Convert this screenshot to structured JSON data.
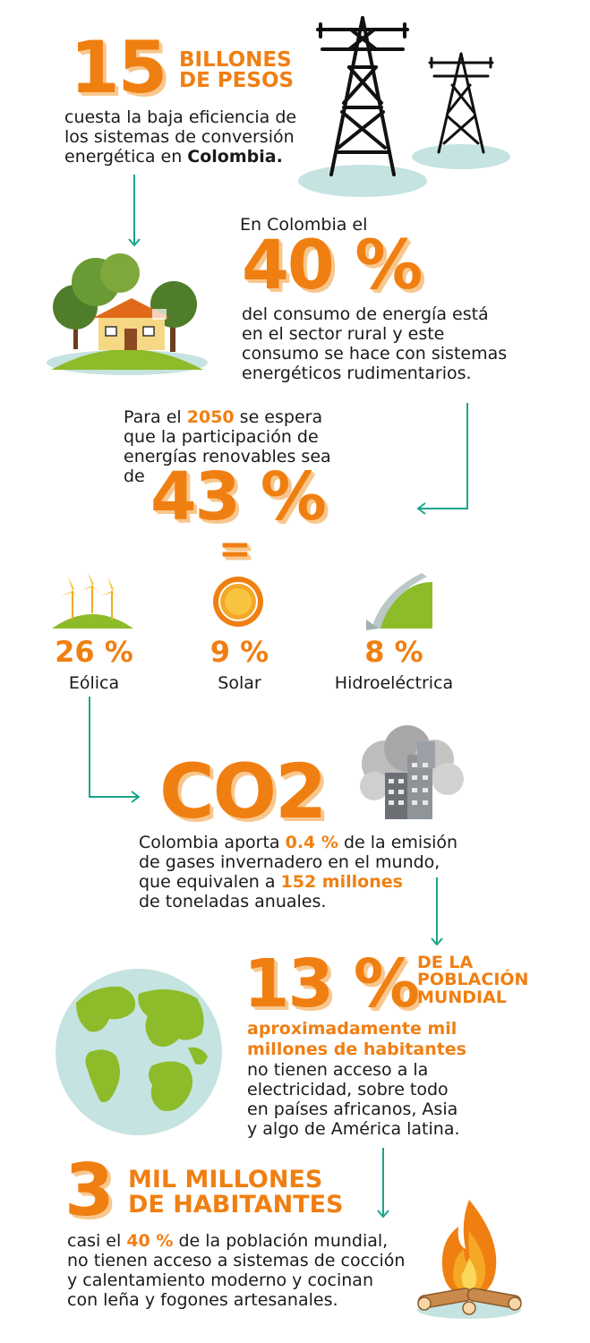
{
  "section1": {
    "number": "15",
    "heading_line1": "BILLONES",
    "heading_line2": "DE PESOS",
    "text_line1": "cuesta la baja eficiencia de",
    "text_line2": "los sistemas de conversión",
    "text_line3_prefix": "energética en ",
    "text_line3_bold": "Colombia."
  },
  "section2": {
    "intro": "En Colombia el",
    "number": "40 %",
    "text_line1": "del consumo de energía está",
    "text_line2": "en el sector rural y este",
    "text_line3": "consumo se hace con sistemas",
    "text_line4": "energéticos rudimentarios."
  },
  "section3": {
    "line1_prefix": "Para el ",
    "line1_year": "2050",
    "line1_suffix": " se espera",
    "line2": "que la participación de",
    "line3": "energías renovables sea",
    "line4": "de",
    "number": "43 %",
    "equals": "=",
    "sources": [
      {
        "percent": "26 %",
        "label": "Eólica",
        "icon": "wind-turbines-icon"
      },
      {
        "percent": "9 %",
        "label": "Solar",
        "icon": "sun-icon"
      },
      {
        "percent": "8 %",
        "label": "Hidroeléctrica",
        "icon": "dam-icon"
      }
    ]
  },
  "section4": {
    "heading": "CO2",
    "line1_prefix": "Colombia aporta ",
    "line1_value": "0.4 %",
    "line1_suffix": " de la emisión",
    "line2": "de gases invernadero en el mundo,",
    "line3_prefix": "que equivalen a ",
    "line3_value": "152 millones",
    "line4": "de toneladas anuales."
  },
  "section5": {
    "number": "13 %",
    "heading_line1": "DE LA",
    "heading_line2": "POBLACIÓN",
    "heading_line3": "MUNDIAL",
    "bold_line1": "aproximadamente mil",
    "bold_line2": "millones de habitantes",
    "text_line1": "no tienen acceso a la",
    "text_line2": "electricidad, sobre todo",
    "text_line3": "en países africanos, Asia",
    "text_line4": "y algo de América latina."
  },
  "section6": {
    "number": "3",
    "heading_line1": "MIL MILLONES",
    "heading_line2": "DE HABITANTES",
    "line1_prefix": "casi el ",
    "line1_value": "40 %",
    "line1_suffix": " de la población mundial,",
    "line2": "no tienen acceso a sistemas de cocción",
    "line3": "y calentamiento moderno y cocinan",
    "line4": "con leña y fogones artesanales."
  },
  "colors": {
    "orange": "#f07f12",
    "orange_shadow": "#f8c78e",
    "teal_arrow": "#1aa58a",
    "green": "#8dbb2a",
    "pale_blue": "#c5e3e0"
  }
}
